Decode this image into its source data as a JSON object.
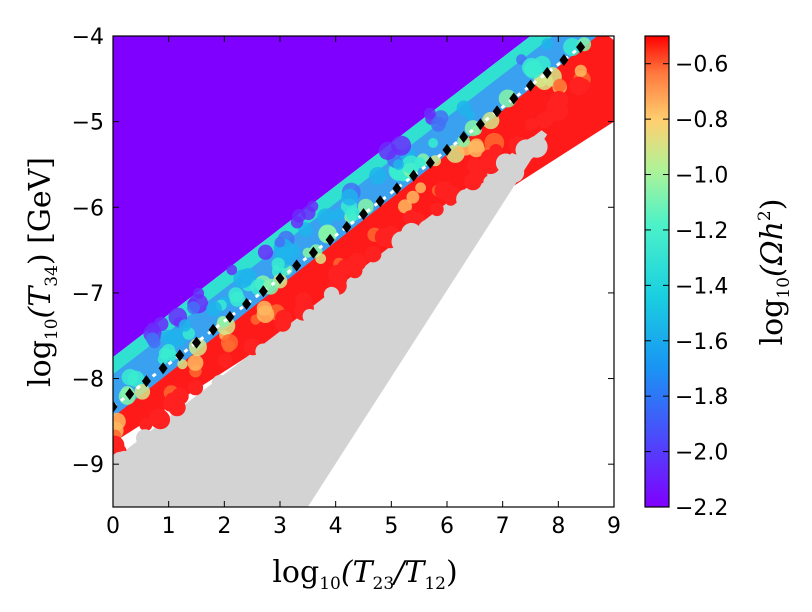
{
  "chart_data": {
    "type": "scatter",
    "xlabel": {
      "prefix": "log",
      "sub": "10",
      "body": "(T",
      "sub1": "23",
      "mid": "/T",
      "sub2": "12",
      "end": ")"
    },
    "ylabel": {
      "prefix": "log",
      "sub": "10",
      "body": "(T",
      "sub1": "34",
      "end": ") [GeV]"
    },
    "colorbar_label": {
      "prefix": "log",
      "sub": "10",
      "body": "(Ωh",
      "sup": "2",
      "end": ")"
    },
    "xlim": [
      0,
      9
    ],
    "ylim": [
      -9.5,
      -4
    ],
    "x_ticks": [
      0,
      1,
      2,
      3,
      4,
      5,
      6,
      7,
      8,
      9
    ],
    "x_tick_labels": [
      "0",
      "1",
      "2",
      "3",
      "4",
      "5",
      "6",
      "7",
      "8",
      "9"
    ],
    "y_ticks": [
      -9,
      -8,
      -7,
      -6,
      -5,
      -4
    ],
    "y_tick_labels": [
      "−9",
      "−8",
      "−7",
      "−6",
      "−5",
      "−4"
    ],
    "colorbar": {
      "colormap": "rainbow",
      "range": [
        -2.2,
        -0.5
      ],
      "ticks": [
        -0.6,
        -0.8,
        -1.0,
        -1.2,
        -1.4,
        -1.6,
        -1.8,
        -2.0,
        -2.2
      ],
      "tick_labels": [
        "−0.6",
        "−0.8",
        "−1.0",
        "−1.2",
        "−1.4",
        "−1.6",
        "−1.8",
        "−2.0",
        "−2.2"
      ]
    },
    "regions": {
      "overabundant_boundary": {
        "slope": 0.5,
        "intercept": -8.75,
        "color": "#ff1a1a",
        "log10_omega_h2": -0.5
      },
      "excluded_band": {
        "x_range": [
          0,
          7.7
        ],
        "upper_intercept": -8.95,
        "lower_intercept": -11.25,
        "slope": 0.5,
        "color": "#d3d3d3"
      },
      "underabundant_region": {
        "color": "#8000ff",
        "log10_omega_h2": -2.2
      },
      "valid_upper_boundary": {
        "slope": 0.5,
        "intercept": -7.75
      }
    },
    "correct_relic_line": {
      "marker": "diamond",
      "color": "#000000",
      "x": [
        0.0,
        0.3,
        0.6,
        0.9,
        1.2,
        1.5,
        1.8,
        2.1,
        2.4,
        2.7,
        3.0,
        3.3,
        3.6,
        3.9,
        4.2,
        4.5,
        4.8,
        5.1,
        5.4,
        5.7,
        6.0,
        6.3,
        6.6,
        6.9,
        7.2,
        7.5,
        7.8,
        8.1,
        8.4
      ],
      "y": [
        -8.33,
        -8.18,
        -8.03,
        -7.88,
        -7.73,
        -7.58,
        -7.43,
        -7.28,
        -7.13,
        -6.98,
        -6.83,
        -6.68,
        -6.53,
        -6.38,
        -6.23,
        -6.08,
        -5.93,
        -5.78,
        -5.63,
        -5.48,
        -5.33,
        -5.18,
        -5.03,
        -4.88,
        -4.73,
        -4.58,
        -4.43,
        -4.28,
        -4.13
      ]
    }
  }
}
